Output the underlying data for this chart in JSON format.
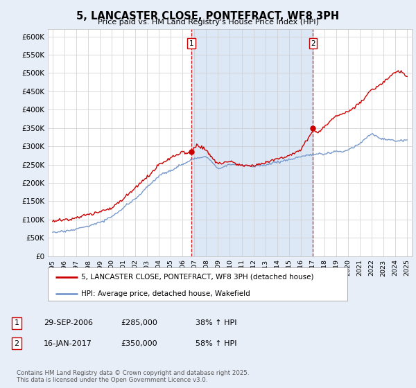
{
  "title": "5, LANCASTER CLOSE, PONTEFRACT, WF8 3PH",
  "subtitle": "Price paid vs. HM Land Registry's House Price Index (HPI)",
  "bg_color": "#e8eef8",
  "plot_bg_color": "#ffffff",
  "shade_color": "#dce8f5",
  "red_color": "#cc0000",
  "blue_color": "#7799cc",
  "vline_color": "#cc0000",
  "ylim": [
    0,
    620000
  ],
  "yticks": [
    0,
    50000,
    100000,
    150000,
    200000,
    250000,
    300000,
    350000,
    400000,
    450000,
    500000,
    550000,
    600000
  ],
  "ytick_labels": [
    "£0",
    "£50K",
    "£100K",
    "£150K",
    "£200K",
    "£250K",
    "£300K",
    "£350K",
    "£400K",
    "£450K",
    "£500K",
    "£550K",
    "£600K"
  ],
  "sale1_date": 2006.75,
  "sale1_price": 285000,
  "sale1_label": "1",
  "sale2_date": 2017.04,
  "sale2_price": 350000,
  "sale2_label": "2",
  "legend_entry1": "5, LANCASTER CLOSE, PONTEFRACT, WF8 3PH (detached house)",
  "legend_entry2": "HPI: Average price, detached house, Wakefield",
  "table_row1": [
    "1",
    "29-SEP-2006",
    "£285,000",
    "38% ↑ HPI"
  ],
  "table_row2": [
    "2",
    "16-JAN-2017",
    "£350,000",
    "58% ↑ HPI"
  ],
  "footer": "Contains HM Land Registry data © Crown copyright and database right 2025.\nThis data is licensed under the Open Government Licence v3.0."
}
